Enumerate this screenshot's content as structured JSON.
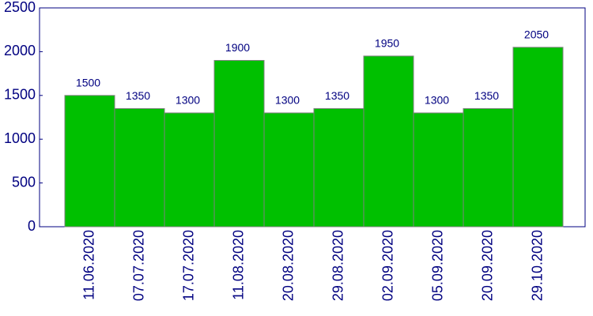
{
  "chart_data": {
    "type": "bar",
    "categories": [
      "11.06.2020",
      "07.07.2020",
      "17.07.2020",
      "11.08.2020",
      "20.08.2020",
      "29.08.2020",
      "02.09.2020",
      "05.09.2020",
      "20.09.2020",
      "29.10.2020"
    ],
    "values": [
      1500,
      1350,
      1300,
      1900,
      1300,
      1350,
      1950,
      1300,
      1350,
      2050
    ],
    "color": "#00c000",
    "ylim": [
      0,
      2500
    ],
    "yticks": [
      0,
      500,
      1000,
      1500,
      2000,
      2500
    ]
  }
}
